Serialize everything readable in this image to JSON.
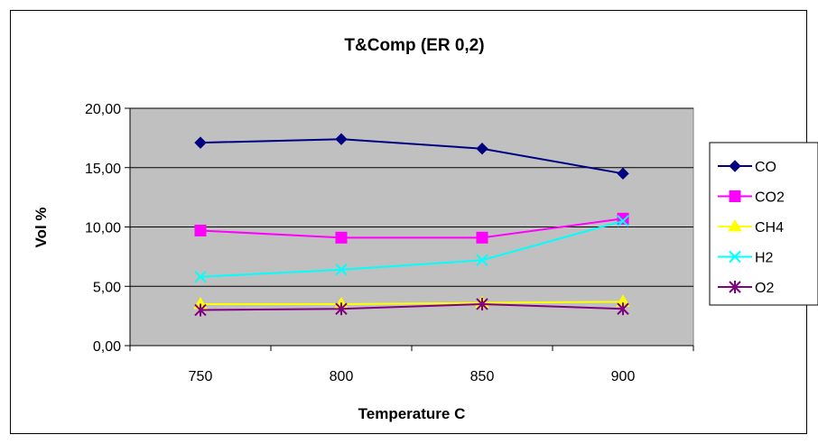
{
  "chart_data": {
    "type": "line",
    "title": "T&Comp (ER 0,2)",
    "xlabel": "Temperature C",
    "ylabel": "Vol %",
    "categories": [
      "750",
      "800",
      "850",
      "900"
    ],
    "y_ticks": [
      "0,00",
      "5,00",
      "10,00",
      "15,00",
      "20,00"
    ],
    "ylim": [
      0,
      20
    ],
    "grid": "horizontal",
    "plot_background": "#c0c0c0",
    "legend_position": "right",
    "series": [
      {
        "name": "CO",
        "values": [
          17.1,
          17.4,
          16.6,
          14.5
        ],
        "color": "#000080",
        "marker": "diamond"
      },
      {
        "name": "CO2",
        "values": [
          9.7,
          9.1,
          9.1,
          10.7
        ],
        "color": "#ff00ff",
        "marker": "square"
      },
      {
        "name": "CH4",
        "values": [
          3.5,
          3.5,
          3.6,
          3.7
        ],
        "color": "#ffff00",
        "marker": "triangle"
      },
      {
        "name": "H2",
        "values": [
          5.8,
          6.4,
          7.2,
          10.5
        ],
        "color": "#00ffff",
        "marker": "x"
      },
      {
        "name": "O2",
        "values": [
          3.0,
          3.1,
          3.5,
          3.1
        ],
        "color": "#800080",
        "marker": "star"
      }
    ]
  }
}
